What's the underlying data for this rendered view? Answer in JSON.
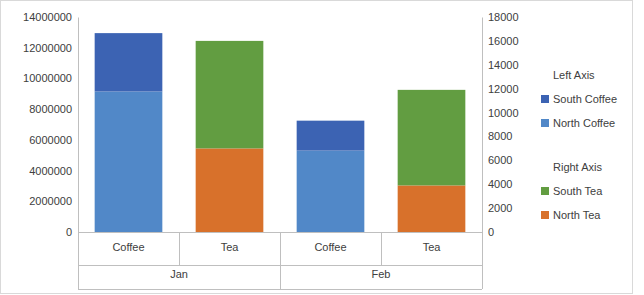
{
  "chart_data": {
    "type": "bar",
    "stacked": true,
    "grid": false,
    "legend": "right",
    "categories": [
      "Coffee",
      "Tea",
      "Coffee",
      "Tea"
    ],
    "category_groups": [
      "Jan",
      "Feb"
    ],
    "ylim": [
      0,
      14000000
    ],
    "yticks": [
      0,
      2000000,
      4000000,
      6000000,
      8000000,
      10000000,
      12000000,
      14000000
    ],
    "y2lim": [
      0,
      18000
    ],
    "y2ticks": [
      0,
      2000,
      4000,
      6000,
      8000,
      10000,
      12000,
      14000,
      16000,
      18000
    ],
    "legend_titles": {
      "y": "Left Axis",
      "y2": "Right Axis"
    },
    "series": [
      {
        "name": "North Coffee",
        "color": "#5188c8",
        "axis": "y",
        "values": [
          9150000,
          null,
          5300000,
          null
        ]
      },
      {
        "name": "South Coffee",
        "color": "#3c63b3",
        "axis": "y",
        "values": [
          3800000,
          null,
          1950000,
          null
        ]
      },
      {
        "name": "North Tea",
        "color": "#d8712b",
        "axis": "y2",
        "values": [
          null,
          7000,
          null,
          3900
        ]
      },
      {
        "name": "South Tea",
        "color": "#629d41",
        "axis": "y2",
        "values": [
          null,
          9000,
          null,
          8000
        ]
      }
    ]
  }
}
